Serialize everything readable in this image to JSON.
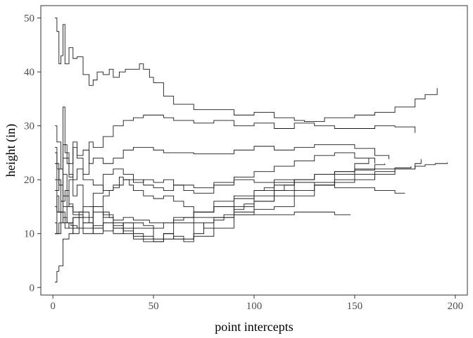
{
  "chart_data": {
    "type": "line",
    "step": true,
    "xlabel": "point intercepts",
    "ylabel": "height (in)",
    "xlim": [
      -6,
      206
    ],
    "ylim": [
      -1.4,
      52.3
    ],
    "xticks": [
      0,
      50,
      100,
      150,
      200
    ],
    "yticks": [
      0,
      10,
      20,
      30,
      40,
      50
    ],
    "grid": false,
    "legend": "none",
    "line_color": "#1a1a1a",
    "series": [
      {
        "x": [
          1,
          2,
          3,
          4,
          5,
          6,
          7,
          8,
          10,
          12,
          15,
          18,
          20,
          22,
          25,
          28,
          30,
          33,
          36,
          40,
          43,
          45,
          48,
          50,
          55,
          60,
          70,
          80,
          90,
          100,
          110,
          120,
          125,
          130,
          135,
          140,
          150,
          160,
          170,
          180,
          185,
          191
        ],
        "y": [
          50,
          47.5,
          41.5,
          43,
          48.8,
          41.5,
          41.5,
          44.5,
          42.5,
          42.8,
          39.5,
          37.5,
          38.5,
          40,
          39.5,
          40.5,
          39,
          40,
          40.5,
          40.5,
          41.5,
          40.5,
          39,
          38,
          35.5,
          34,
          33,
          33,
          32,
          32.5,
          31.5,
          31,
          30.8,
          30.8,
          31.5,
          31.5,
          32,
          32.5,
          33.5,
          35,
          35.8,
          37
        ]
      },
      {
        "x": [
          1,
          2,
          4,
          5,
          6,
          8,
          10,
          12,
          15,
          18,
          20,
          25,
          30,
          35,
          40,
          45,
          50,
          55,
          60,
          70,
          80,
          90,
          100,
          110,
          120,
          130,
          140,
          150,
          160,
          170,
          180
        ],
        "y": [
          30,
          27,
          22,
          33.5,
          25,
          20.5,
          26,
          24,
          21,
          27,
          26,
          28,
          30,
          31,
          31.5,
          32,
          32,
          31.5,
          31,
          30.5,
          31,
          30,
          30.5,
          29.5,
          30.5,
          30,
          29.5,
          29.5,
          30,
          29.8,
          28.7
        ]
      },
      {
        "x": [
          1,
          2,
          4,
          5,
          7,
          10,
          12,
          15,
          18,
          20,
          25,
          30,
          35,
          40,
          45,
          50,
          55,
          60,
          70,
          80,
          90,
          100,
          110,
          120,
          130,
          140,
          150,
          160,
          167
        ],
        "y": [
          25,
          20,
          16,
          26.5,
          23,
          27,
          24.5,
          25.5,
          23,
          24,
          23,
          24,
          25.5,
          26,
          26,
          25.5,
          25,
          25,
          24.8,
          24.8,
          25.5,
          26.2,
          25.5,
          26,
          26.5,
          26.5,
          25.8,
          24.5,
          23.8
        ]
      },
      {
        "x": [
          1,
          2,
          3,
          5,
          7,
          9,
          12,
          15,
          20,
          25,
          30,
          35,
          40,
          45,
          50,
          55,
          60,
          65,
          70,
          80,
          90,
          100,
          110,
          115,
          120
        ],
        "y": [
          10,
          17,
          14,
          21,
          12,
          11.5,
          11,
          10,
          11.5,
          12,
          11,
          10,
          9.5,
          9,
          8.5,
          9,
          9,
          8.5,
          9.5,
          11,
          13.5,
          16,
          18,
          19,
          19.5
        ]
      },
      {
        "x": [
          1,
          3,
          5,
          8,
          10,
          12,
          15,
          18,
          20,
          25,
          28,
          30,
          35,
          40,
          45,
          50,
          55,
          60,
          65,
          70,
          75,
          80,
          90,
          100,
          110,
          120,
          130,
          140,
          150,
          160,
          170,
          180,
          183
        ],
        "y": [
          23,
          19,
          15,
          20,
          17,
          19,
          14,
          12,
          11,
          14,
          13,
          10,
          12,
          11,
          11,
          9,
          10,
          9,
          9,
          12,
          11,
          13,
          15,
          17,
          18,
          19.5,
          19.5,
          20,
          21,
          21.5,
          22,
          23,
          23.8
        ]
      },
      {
        "x": [
          1,
          2,
          4,
          6,
          8,
          10,
          15,
          20,
          25,
          30,
          35,
          40,
          45,
          50,
          55,
          60,
          65,
          70,
          75,
          80,
          85,
          90,
          95,
          100,
          110,
          120,
          130,
          140,
          150,
          160,
          170,
          180,
          185,
          190,
          196
        ],
        "y": [
          12,
          10,
          14,
          11,
          12,
          13,
          11,
          10,
          12,
          11,
          10.5,
          9,
          8.5,
          8.5,
          9,
          9.5,
          9,
          10,
          12,
          12.5,
          13.5,
          14.5,
          15.5,
          16,
          17,
          18,
          19,
          19.5,
          20,
          21,
          22,
          22.5,
          22.8,
          23,
          23.2
        ]
      },
      {
        "x": [
          1,
          2,
          5,
          8,
          10,
          15,
          20,
          25,
          28,
          30,
          35,
          40,
          45,
          50,
          55,
          60,
          70,
          80,
          90,
          100,
          110,
          120,
          130,
          140,
          145,
          150,
          160
        ],
        "y": [
          15,
          14,
          12,
          11,
          13,
          12,
          15,
          17,
          18,
          19,
          20,
          19.5,
          20,
          19.5,
          20,
          19,
          18.5,
          19,
          20.5,
          21.5,
          22.5,
          23.5,
          24.5,
          25,
          25,
          24,
          23
        ]
      },
      {
        "x": [
          1,
          2,
          3,
          5,
          8,
          10,
          15,
          20,
          25,
          30,
          35,
          40,
          45,
          50,
          55,
          60,
          70,
          80,
          90,
          100,
          110,
          120,
          130,
          140,
          150,
          160,
          170,
          178
        ],
        "y": [
          20,
          18,
          22,
          17,
          15,
          13.5,
          12,
          11,
          10.5,
          11.5,
          12,
          12,
          11.5,
          11,
          12,
          13,
          14,
          15,
          16.5,
          18,
          19.5,
          20,
          21,
          21.5,
          22,
          22,
          22.2,
          22.5
        ]
      },
      {
        "x": [
          1,
          2,
          4,
          6,
          8,
          10,
          15,
          20,
          25,
          30,
          35,
          40,
          45,
          50,
          55,
          60,
          65,
          70,
          80,
          90,
          100,
          110,
          120,
          130,
          140,
          150,
          160,
          170,
          175
        ],
        "y": [
          18,
          14,
          16,
          18,
          15.5,
          14,
          15,
          17.5,
          21,
          22,
          21,
          20,
          19,
          18.5,
          18,
          19,
          18,
          17.5,
          19.5,
          20,
          19.5,
          20,
          19.5,
          19,
          18.5,
          18.5,
          18,
          17.5,
          17.5
        ]
      },
      {
        "x": [
          1,
          3,
          5,
          7,
          10,
          13,
          15,
          20,
          25,
          30,
          35,
          40,
          45,
          48,
          50,
          55,
          60,
          65,
          70,
          80,
          90,
          100,
          110,
          120,
          130,
          140,
          148
        ],
        "y": [
          10,
          12,
          13,
          12,
          10,
          14,
          13,
          15,
          13.5,
          12.5,
          13,
          12.5,
          12.5,
          12,
          12,
          12,
          12.5,
          13,
          13,
          13,
          13.5,
          13.5,
          13.5,
          14,
          14,
          13.5,
          13.5
        ]
      },
      {
        "x": [
          1,
          2,
          5,
          8,
          10,
          12,
          15,
          20,
          25,
          30,
          33,
          35,
          38,
          40,
          45,
          50,
          55,
          60,
          65,
          70,
          80,
          90,
          100,
          110,
          120,
          130,
          140,
          150,
          157
        ],
        "y": [
          26,
          22,
          24,
          21,
          20,
          22,
          20,
          19,
          18,
          18.5,
          20.5,
          20,
          19,
          18,
          17,
          16.5,
          17,
          16,
          15,
          14,
          15,
          14,
          14.5,
          15,
          17,
          19,
          21,
          23,
          24
        ]
      },
      {
        "x": [
          1,
          2,
          3,
          5,
          8,
          10,
          15,
          20,
          25,
          30,
          35,
          40,
          45,
          50,
          55,
          60,
          70,
          80,
          90,
          100,
          105,
          110,
          120,
          130,
          140,
          150,
          160,
          165
        ],
        "y": [
          1,
          3,
          4,
          9,
          10,
          11,
          12,
          14,
          13,
          12,
          11,
          10,
          9.5,
          9,
          10,
          12,
          14,
          16,
          17,
          18,
          18.5,
          19,
          20,
          21,
          21.5,
          21.8,
          22.8,
          23
        ]
      }
    ]
  }
}
